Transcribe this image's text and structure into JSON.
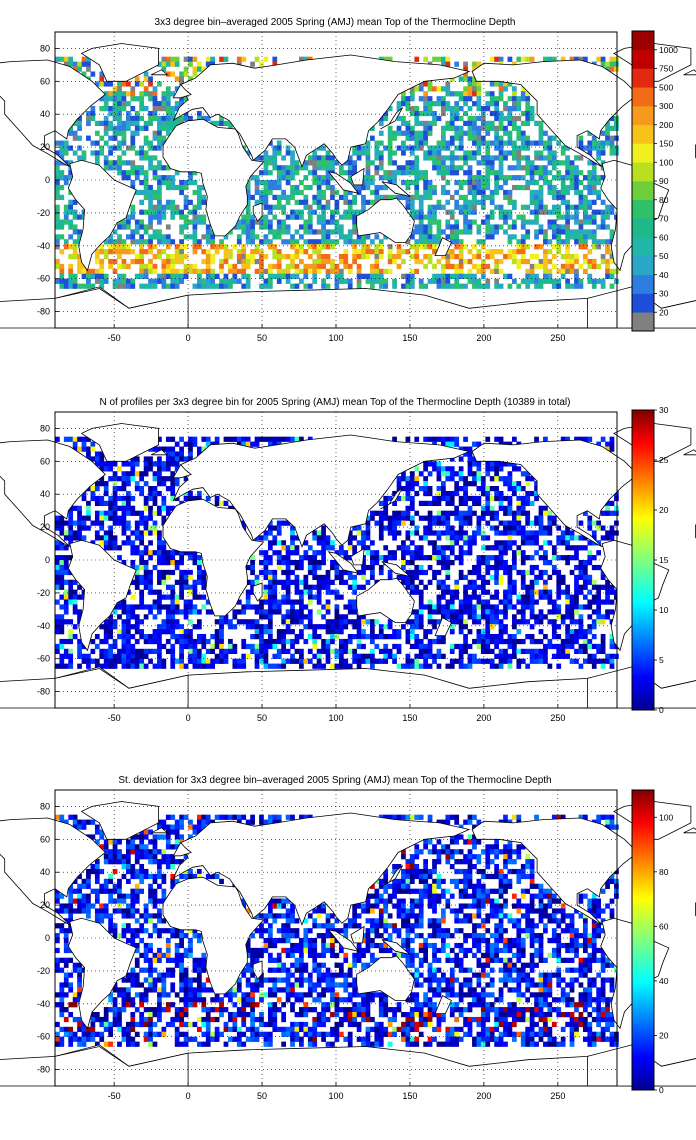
{
  "chart_data": [
    {
      "type": "heatmap",
      "title": "3x3 degree bin–averaged 2005 Spring (AMJ) mean Top of the Thermocline Depth",
      "xlabel": "",
      "ylabel": "",
      "xlim": [
        -90,
        290
      ],
      "ylim": [
        -90,
        90
      ],
      "x_ticks": [
        -50,
        0,
        50,
        100,
        150,
        200,
        250
      ],
      "y_ticks": [
        80,
        60,
        40,
        20,
        0,
        -20,
        -40,
        -60,
        -80
      ],
      "grid": true,
      "colorbar": {
        "type": "categorical",
        "labels": [
          "20",
          "30",
          "40",
          "50",
          "60",
          "70",
          "80",
          "90",
          "100",
          "150",
          "200",
          "300",
          "500",
          "750",
          "1000"
        ],
        "colors": [
          "#808080",
          "#1f4fd8",
          "#2e7de0",
          "#2aa6c8",
          "#22b6a8",
          "#1fb88a",
          "#2fc06a",
          "#6fcf3a",
          "#b8e020",
          "#f0f020",
          "#f7c21a",
          "#f59a1a",
          "#f36b16",
          "#e22a10",
          "#c00000",
          "#9a0000"
        ]
      }
    },
    {
      "type": "heatmap",
      "title": "N of profiles per 3x3 degree bin for 2005 Spring (AMJ) mean Top of the Thermocline Depth  (10389 in total)",
      "xlabel": "",
      "ylabel": "",
      "xlim": [
        -90,
        290
      ],
      "ylim": [
        -90,
        90
      ],
      "x_ticks": [
        -50,
        0,
        50,
        100,
        150,
        200,
        250
      ],
      "y_ticks": [
        80,
        60,
        40,
        20,
        0,
        -20,
        -40,
        -60,
        -80
      ],
      "grid": true,
      "colorbar": {
        "type": "continuous",
        "range": [
          0,
          30
        ],
        "ticks": [
          0,
          5,
          10,
          15,
          20,
          25,
          30
        ]
      }
    },
    {
      "type": "heatmap",
      "title": "St. deviation for 3x3 degree bin–averaged 2005 Spring (AMJ) mean Top of the Thermocline Depth",
      "xlabel": "",
      "ylabel": "",
      "xlim": [
        -90,
        290
      ],
      "ylim": [
        -90,
        90
      ],
      "x_ticks": [
        -50,
        0,
        50,
        100,
        150,
        200,
        250
      ],
      "y_ticks": [
        80,
        60,
        40,
        20,
        0,
        -20,
        -40,
        -60,
        -80
      ],
      "grid": true,
      "colorbar": {
        "type": "continuous",
        "range": [
          0,
          110
        ],
        "ticks": [
          0,
          20,
          40,
          60,
          80,
          100
        ]
      }
    }
  ]
}
